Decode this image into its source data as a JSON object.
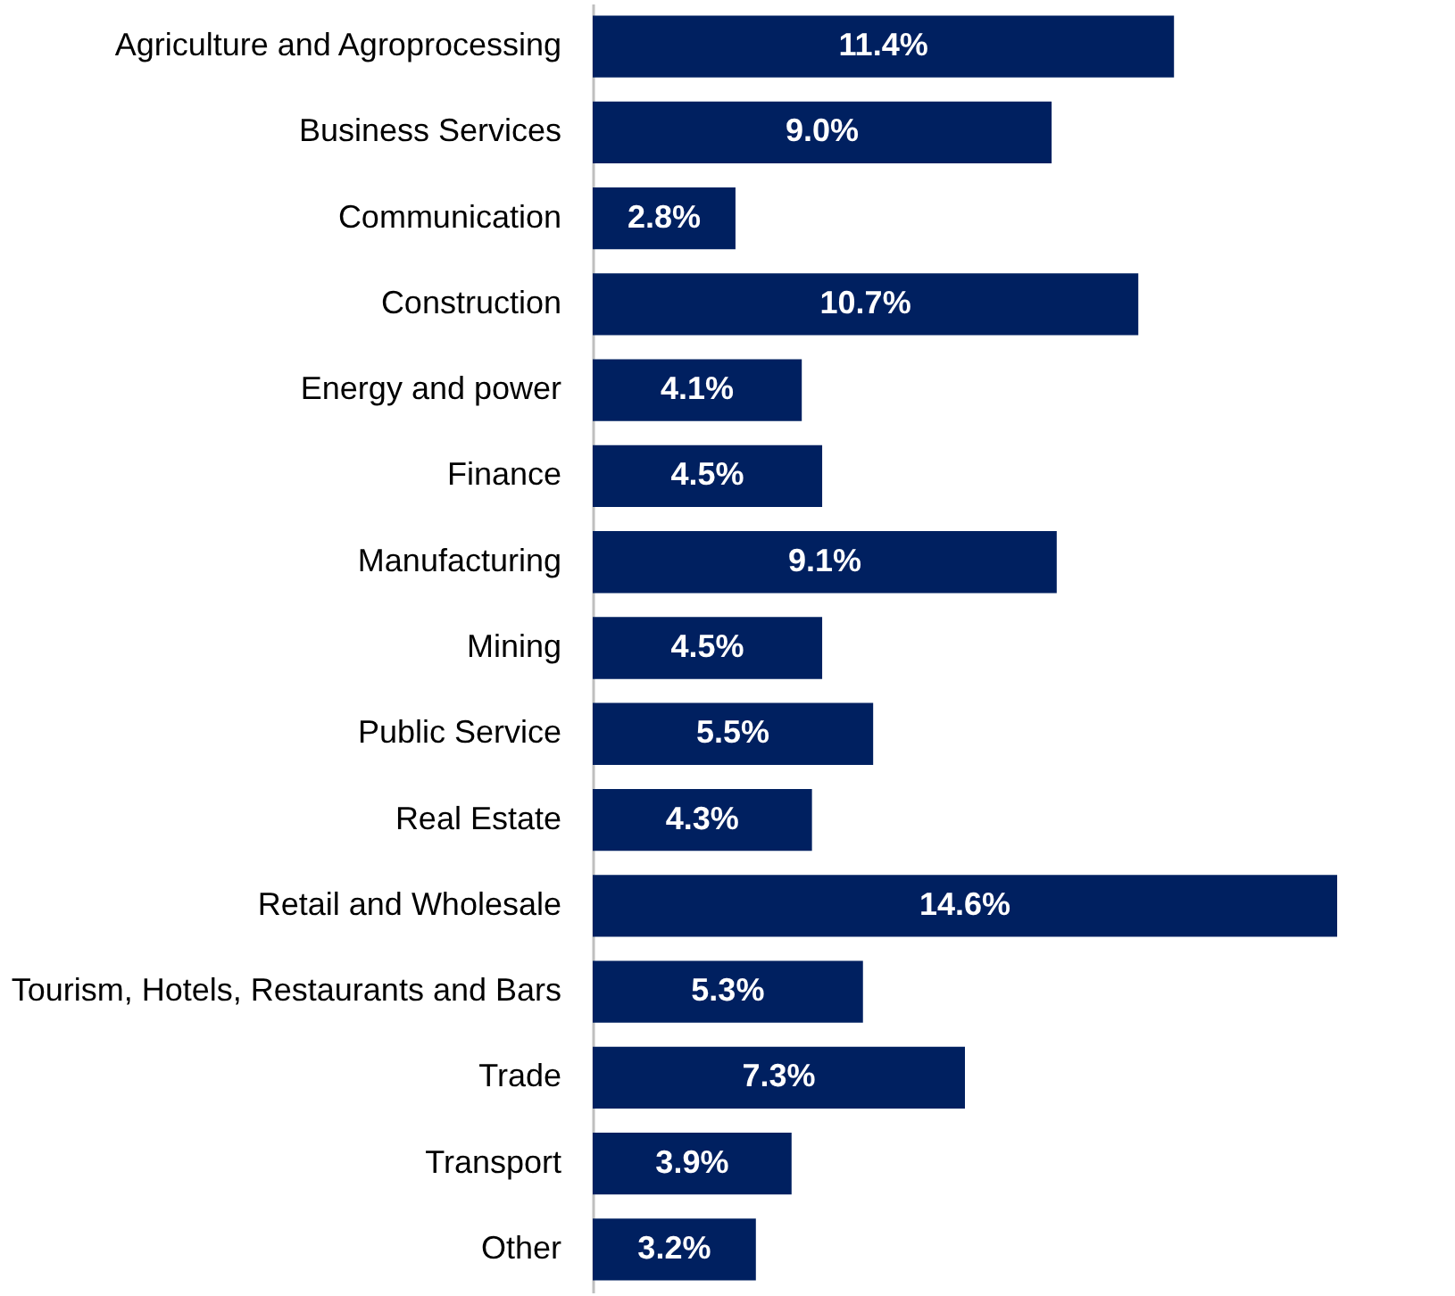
{
  "chart_data": {
    "type": "bar",
    "orientation": "horizontal",
    "data_labels": true,
    "color": "#002060",
    "categories": [
      "Agriculture and Agroprocessing",
      "Business Services",
      "Communication",
      "Construction",
      "Energy and power",
      "Finance",
      "Manufacturing",
      "Mining",
      "Public Service",
      "Real Estate",
      "Retail and Wholesale",
      "Tourism, Hotels, Restaurants and Bars",
      "Trade",
      "Transport",
      "Other"
    ],
    "values": [
      11.4,
      9.0,
      2.8,
      10.7,
      4.1,
      4.5,
      9.1,
      4.5,
      5.5,
      4.3,
      14.6,
      5.3,
      7.3,
      3.9,
      3.2
    ],
    "value_labels": [
      "11.4%",
      "9.0%",
      "2.8%",
      "10.7%",
      "4.1%",
      "4.5%",
      "9.1%",
      "4.5%",
      "5.5%",
      "4.3%",
      "14.6%",
      "5.3%",
      "7.3%",
      "3.9%",
      "3.2%"
    ],
    "grid": false
  }
}
